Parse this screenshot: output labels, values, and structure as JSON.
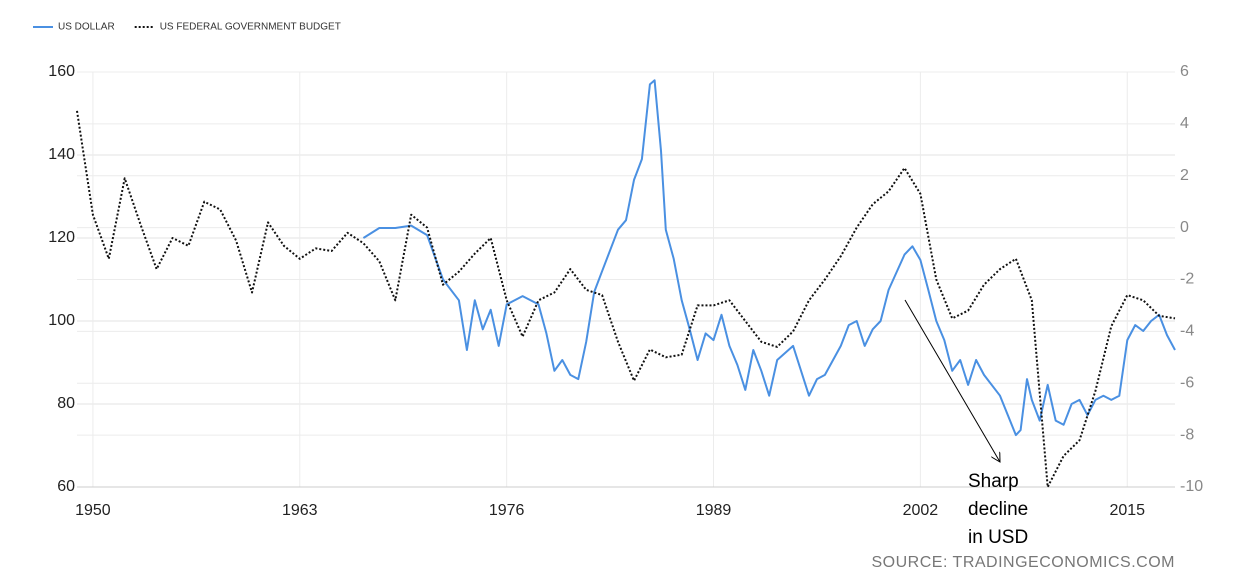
{
  "chart_data": {
    "type": "line",
    "legend_position": "top-left",
    "grid": true,
    "xlim": [
      1949,
      2018
    ],
    "xticks": [
      1950,
      1963,
      1976,
      1989,
      2002,
      2015
    ],
    "ylim": [
      60,
      160
    ],
    "yticks": [
      60,
      80,
      100,
      120,
      140,
      160
    ],
    "y2lim": [
      -10,
      6
    ],
    "y2ticks": [
      -10,
      -8,
      -6,
      -4,
      -2,
      0,
      2,
      4,
      6
    ],
    "series": [
      {
        "name": "US DOLLAR",
        "color": "#4a90e2",
        "style": "solid",
        "x": [
          1967,
          1968,
          1969,
          1970,
          1971,
          1972,
          1973,
          1973.5,
          1974,
          1974.5,
          1975,
          1975.5,
          1976,
          1977,
          1978,
          1978.5,
          1979,
          1979.5,
          1980,
          1980.5,
          1981,
          1981.5,
          1982,
          1983,
          1983.5,
          1984,
          1984.5,
          1985,
          1985.3,
          1985.7,
          1986,
          1986.5,
          1987,
          1987.5,
          1988,
          1988.5,
          1989,
          1989.5,
          1990,
          1990.5,
          1991,
          1991.5,
          1992,
          1992.5,
          1993,
          1994,
          1995,
          1995.5,
          1996,
          1997,
          1997.5,
          1998,
          1998.5,
          1999,
          1999.5,
          2000,
          2001,
          2001.5,
          2002,
          2002.5,
          2003,
          2003.5,
          2004,
          2004.5,
          2005,
          2005.5,
          2006,
          2007,
          2008,
          2008.3,
          2008.7,
          2009,
          2009.5,
          2010,
          2010.5,
          2011,
          2011.5,
          2012,
          2012.5,
          2013,
          2013.5,
          2014,
          2014.5,
          2015,
          2015.5,
          2016,
          2016.5,
          2017,
          2017.5,
          2018
        ],
        "values": [
          120,
          122.4,
          122.4,
          123,
          120.7,
          110,
          105,
          93,
          105,
          98,
          102.7,
          94,
          104,
          106,
          104,
          97,
          88,
          90.6,
          87,
          86,
          95,
          107,
          112,
          122,
          124.3,
          134,
          139,
          157,
          158,
          141,
          122,
          115,
          105,
          98,
          90.6,
          97,
          95.4,
          101.5,
          94,
          89.4,
          83.4,
          93,
          88,
          82,
          90.6,
          94,
          82,
          86,
          87,
          94,
          99,
          100,
          94,
          98,
          100,
          107.5,
          116,
          118,
          114.7,
          107.5,
          100,
          95.4,
          88,
          90.6,
          84.6,
          90.6,
          87,
          82,
          72.5,
          73.7,
          86,
          81,
          76,
          84.6,
          76,
          75,
          80,
          81,
          77.3,
          81,
          82,
          81,
          82,
          95.4,
          99,
          97.6,
          100,
          101.5,
          96.6,
          93
        ]
      },
      {
        "name": "US FEDERAL GOVERNMENT BUDGET",
        "color": "#111111",
        "style": "dotted",
        "axis": "y2",
        "x": [
          1949,
          1950,
          1951,
          1952,
          1953,
          1954,
          1955,
          1956,
          1957,
          1958,
          1959,
          1960,
          1961,
          1962,
          1963,
          1964,
          1965,
          1966,
          1967,
          1968,
          1969,
          1970,
          1971,
          1972,
          1973,
          1974,
          1975,
          1976,
          1977,
          1978,
          1979,
          1980,
          1981,
          1982,
          1983,
          1984,
          1985,
          1986,
          1987,
          1988,
          1989,
          1990,
          1991,
          1992,
          1993,
          1994,
          1995,
          1996,
          1997,
          1998,
          1999,
          2000,
          2001,
          2002,
          2003,
          2004,
          2005,
          2006,
          2007,
          2008,
          2009,
          2010,
          2011,
          2012,
          2013,
          2014,
          2015,
          2016,
          2017,
          2018
        ],
        "values": [
          4.5,
          0.5,
          -1.2,
          1.9,
          0.1,
          -1.6,
          -0.4,
          -0.7,
          1.0,
          0.7,
          -0.5,
          -2.5,
          0.2,
          -0.7,
          -1.2,
          -0.8,
          -0.9,
          -0.2,
          -0.6,
          -1.3,
          -2.8,
          0.5,
          0.0,
          -2.2,
          -1.7,
          -1.0,
          -0.4,
          -2.8,
          -4.2,
          -2.8,
          -2.5,
          -1.6,
          -2.4,
          -2.6,
          -4.4,
          -5.9,
          -4.7,
          -5.0,
          -4.9,
          -3.0,
          -3.0,
          -2.8,
          -3.6,
          -4.4,
          -4.6,
          -4.0,
          -2.8,
          -2.0,
          -1.1,
          0.0,
          0.9,
          1.4,
          2.3,
          1.3,
          -2.0,
          -3.5,
          -3.2,
          -2.2,
          -1.6,
          -1.2,
          -2.8,
          -10.0,
          -8.8,
          -8.2,
          -6.3,
          -3.8,
          -2.6,
          -2.8,
          -3.4,
          -3.5
        ]
      }
    ],
    "annotation": [
      "Sharp",
      "decline",
      "in USD"
    ],
    "source": "SOURCE: TRADINGECONOMICS.COM"
  }
}
